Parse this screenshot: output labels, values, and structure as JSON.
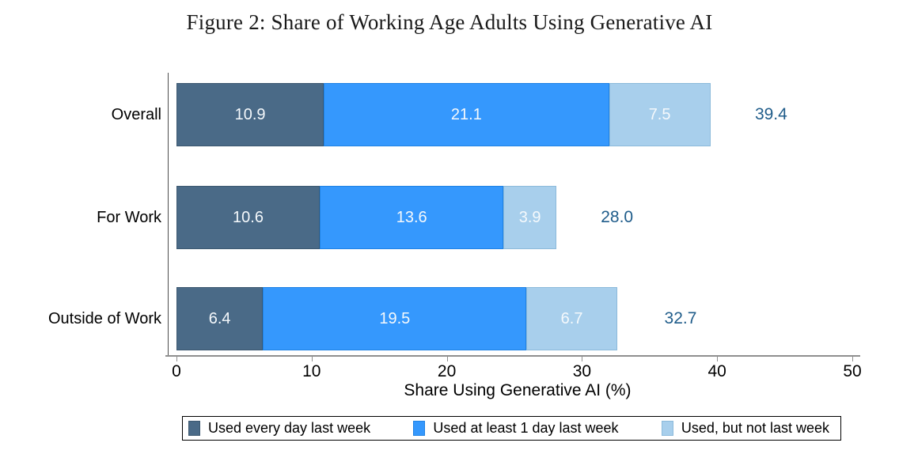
{
  "title": "Figure 2: Share of Working Age Adults Using Generative AI",
  "chart_data": {
    "type": "bar",
    "orientation": "horizontal",
    "stacked": true,
    "title": "Figure 2: Share of Working Age Adults Using Generative AI",
    "categories": [
      "Overall",
      "For Work",
      "Outside of Work"
    ],
    "series": [
      {
        "name": "Used every day last week",
        "color": "#4a6a87",
        "edge_color": "#3c5870",
        "values": [
          10.9,
          10.6,
          6.4
        ]
      },
      {
        "name": "Used at least 1 day last week",
        "color": "#3598fd",
        "edge_color": "#1f82e4",
        "values": [
          21.1,
          13.6,
          19.5
        ]
      },
      {
        "name": "Used, but not last week",
        "color": "#a8cfec",
        "edge_color": "#8cbadb",
        "values": [
          7.5,
          3.9,
          6.7
        ]
      }
    ],
    "totals": [
      39.4,
      28.0,
      32.7
    ],
    "xlabel": "Share Using Generative AI (%)",
    "xlim": [
      0,
      50
    ],
    "xticks": [
      0,
      10,
      20,
      30,
      40,
      50
    ],
    "grid": false,
    "legend_position": "bottom",
    "colors": {
      "total_label": "#1f5c8a",
      "bar_value_label": "#f5f9fc",
      "axis_line": "#8f8f8f",
      "text": "#000000"
    }
  }
}
